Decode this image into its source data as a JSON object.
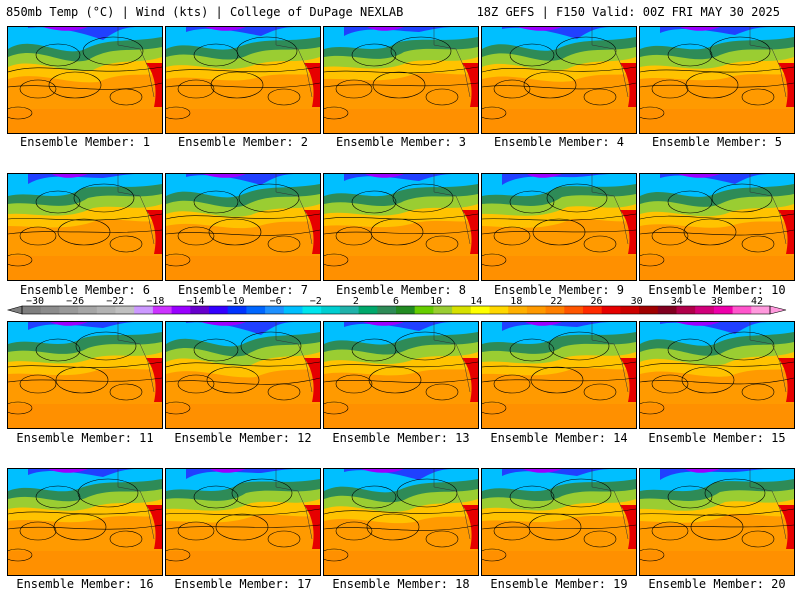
{
  "header": {
    "left": "850mb Temp (°C) | Wind (kts) | College of DuPage NEXLAB",
    "right": "18Z GEFS | F150 Valid: 00Z FRI MAY 30 2025"
  },
  "members": [
    "Ensemble Member: 1",
    "Ensemble Member: 2",
    "Ensemble Member: 3",
    "Ensemble Member: 4",
    "Ensemble Member: 5",
    "Ensemble Member: 6",
    "Ensemble Member: 7",
    "Ensemble Member: 8",
    "Ensemble Member: 9",
    "Ensemble Member: 10",
    "Ensemble Member: 11",
    "Ensemble Member: 12",
    "Ensemble Member: 13",
    "Ensemble Member: 14",
    "Ensemble Member: 15",
    "Ensemble Member: 16",
    "Ensemble Member: 17",
    "Ensemble Member: 18",
    "Ensemble Member: 19",
    "Ensemble Member: 20"
  ],
  "colorbar": {
    "labels": [
      "−30",
      "−26",
      "−22",
      "−18",
      "−14",
      "−10",
      "−6",
      "−2",
      "2",
      "6",
      "10",
      "14",
      "18",
      "22",
      "26",
      "30",
      "34",
      "38",
      "42"
    ],
    "colors": [
      "#7f7f7f",
      "#8c8c8c",
      "#999999",
      "#a6a6a6",
      "#b3b3b3",
      "#c0c0c0",
      "#cc99ff",
      "#cc33ff",
      "#9900ff",
      "#6600cc",
      "#3300ff",
      "#0033ff",
      "#0066ff",
      "#1e90ff",
      "#00bfff",
      "#00e5ee",
      "#00ced1",
      "#20b2aa",
      "#00a86b",
      "#2e8b57",
      "#228b22",
      "#66cd00",
      "#9acd32",
      "#d6e000",
      "#ffff00",
      "#ffd700",
      "#ffb000",
      "#ff9900",
      "#ff7f00",
      "#ff5500",
      "#ff2a00",
      "#e60000",
      "#cc0000",
      "#a00000",
      "#800020",
      "#b0004a",
      "#d0007a",
      "#ee00aa",
      "#ff55cc",
      "#ff99dd"
    ]
  }
}
